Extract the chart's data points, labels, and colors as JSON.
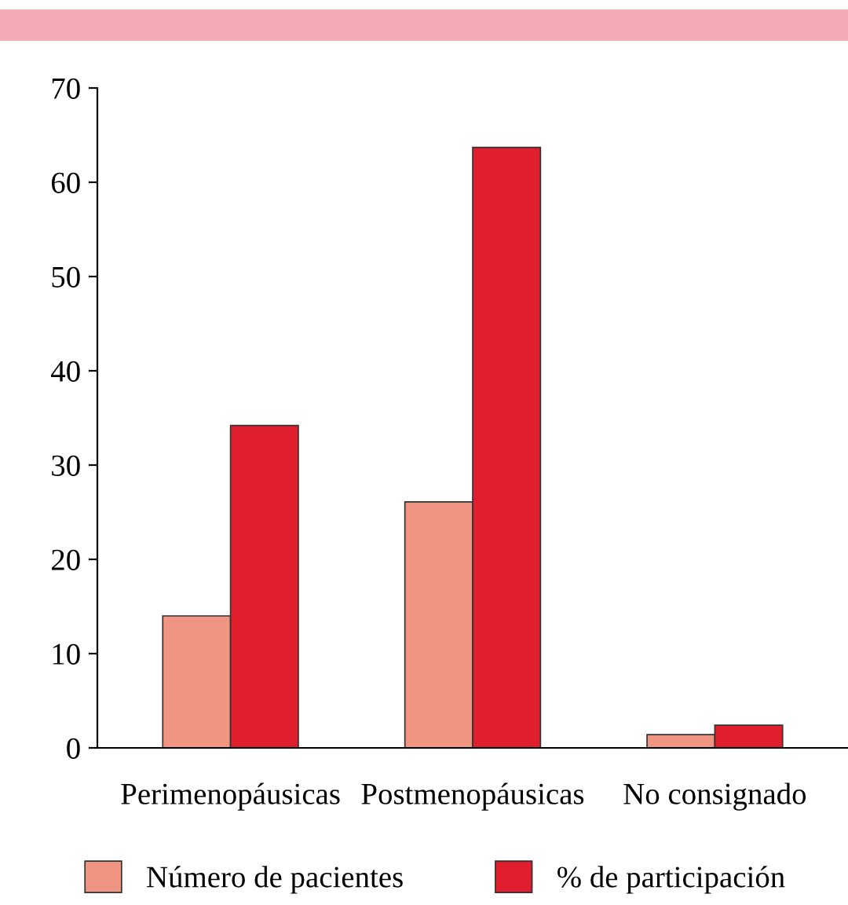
{
  "chart_data": {
    "type": "bar",
    "categories": [
      "Perimenopáusicas",
      "Postmenopáusicas",
      "No consignado"
    ],
    "series": [
      {
        "name": "Número de pacientes",
        "color": "#ef9581",
        "values": [
          14,
          26.1,
          1.4
        ]
      },
      {
        "name": "% de participación",
        "color": "#df1f2e",
        "values": [
          34.2,
          63.7,
          2.4
        ]
      }
    ],
    "ylim": [
      0,
      70
    ],
    "yticks": [
      0,
      10,
      20,
      30,
      40,
      50,
      60,
      70
    ],
    "grid": false,
    "legend": "bottom"
  }
}
